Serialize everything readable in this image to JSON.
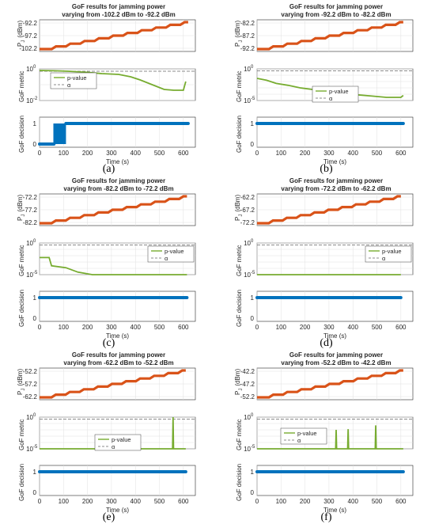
{
  "labels": {
    "pj_axis": "P",
    "pj_sub": "J",
    "pj_unit": "(dBm)",
    "metric_axis": "GoF metric",
    "decision_axis": "GoF decision",
    "time_axis": "Time (s)",
    "legend_pvalue": "p-value",
    "legend_alpha": "α"
  },
  "colors": {
    "power": "#d95319",
    "pvalue": "#77ac30",
    "alpha": "#666666",
    "decision": "#0072bd",
    "axes": "#262626",
    "grid": "#e0e0e0"
  },
  "chart_data": [
    {
      "caption": "(a)",
      "type": "line",
      "title": "GoF results for jamming power",
      "subtitle": "varying from -102.2 dBm to -92.2 dBm",
      "xlim": [
        0,
        650
      ],
      "xticks": [
        0,
        100,
        200,
        300,
        400,
        500,
        600
      ],
      "xlabel": "Time (s)",
      "power": {
        "start": -102.2,
        "end": -92.2,
        "ticks": [
          "-92.2",
          "-97.2",
          "-102.2"
        ],
        "steps": 10,
        "t_end": 620
      },
      "metric": {
        "ylabel": "GoF metric",
        "scale": "log",
        "ymin_exp": -2,
        "ymax_exp": 0,
        "yticks": [
          {
            "exp": 0,
            "label": "10",
            "sup": "0"
          },
          {
            "exp": -2,
            "label": "10",
            "sup": "-2"
          }
        ],
        "alpha_exp": -0.15,
        "pvalue": [
          [
            0,
            -0.1
          ],
          [
            60,
            -0.12
          ],
          [
            120,
            -0.15
          ],
          [
            200,
            -0.22
          ],
          [
            260,
            -0.3
          ],
          [
            330,
            -0.35
          ],
          [
            380,
            -0.5
          ],
          [
            420,
            -0.7
          ],
          [
            470,
            -1.0
          ],
          [
            520,
            -1.3
          ],
          [
            560,
            -1.35
          ],
          [
            600,
            -1.35
          ],
          [
            610,
            -0.8
          ]
        ],
        "legend": "left-top"
      },
      "decision": {
        "ylabel": "GoF decision",
        "yticks": [
          0,
          1
        ],
        "segments": [
          [
            0,
            60,
            0
          ],
          [
            60,
            110,
            "switch"
          ],
          [
            110,
            620,
            1
          ]
        ]
      }
    },
    {
      "caption": "(b)",
      "type": "line",
      "title": "GoF results for jamming power",
      "subtitle": "varying from -92.2 dBm to -82.2 dBm",
      "xlim": [
        0,
        650
      ],
      "xticks": [
        0,
        100,
        200,
        300,
        400,
        500,
        600
      ],
      "xlabel": "Time (s)",
      "power": {
        "start": -92.2,
        "end": -82.2,
        "ticks": [
          "-82.2",
          "-87.2",
          "-92.2"
        ],
        "steps": 10,
        "t_end": 610
      },
      "metric": {
        "ylabel": "GoF metric",
        "scale": "log",
        "ymin_exp": -5,
        "ymax_exp": 0,
        "yticks": [
          {
            "exp": 0,
            "label": "10",
            "sup": "0"
          },
          {
            "exp": -5,
            "label": "10",
            "sup": "-5"
          }
        ],
        "alpha_exp": -0.3,
        "pvalue": [
          [
            0,
            -1.5
          ],
          [
            40,
            -1.8
          ],
          [
            80,
            -2.3
          ],
          [
            130,
            -2.6
          ],
          [
            180,
            -3.0
          ],
          [
            240,
            -3.3
          ],
          [
            300,
            -3.6
          ],
          [
            360,
            -3.9
          ],
          [
            420,
            -4.1
          ],
          [
            480,
            -4.3
          ],
          [
            540,
            -4.5
          ],
          [
            600,
            -4.5
          ],
          [
            610,
            -4.2
          ]
        ],
        "legend": "center"
      },
      "decision": {
        "ylabel": "GoF decision",
        "yticks": [
          0,
          1
        ],
        "segments": [
          [
            0,
            610,
            1
          ]
        ]
      }
    },
    {
      "caption": "(c)",
      "type": "line",
      "title": "GoF results for jamming power",
      "subtitle": "varying from -82.2 dBm to -72.2 dBm",
      "xlim": [
        0,
        650
      ],
      "xticks": [
        0,
        100,
        200,
        300,
        400,
        500,
        600
      ],
      "xlabel": "Time (s)",
      "power": {
        "start": -82.2,
        "end": -72.2,
        "ticks": [
          "-72.2",
          "-77.2",
          "-82.2"
        ],
        "steps": 10,
        "t_end": 615
      },
      "metric": {
        "ylabel": "GoF metric",
        "scale": "log",
        "ymin_exp": -5,
        "ymax_exp": 0,
        "yticks": [
          {
            "exp": 0,
            "label": "10",
            "sup": "0"
          },
          {
            "exp": -5,
            "label": "10",
            "sup": "-5"
          }
        ],
        "alpha_exp": -0.3,
        "pvalue": [
          [
            0,
            -2.3
          ],
          [
            40,
            -2.3
          ],
          [
            50,
            -3.6
          ],
          [
            110,
            -3.9
          ],
          [
            160,
            -4.6
          ],
          [
            220,
            -5
          ],
          [
            615,
            -5
          ]
        ],
        "legend": "right-top"
      },
      "decision": {
        "ylabel": "GoF decision",
        "yticks": [
          0,
          1
        ],
        "segments": [
          [
            0,
            615,
            1
          ]
        ]
      }
    },
    {
      "caption": "(d)",
      "type": "line",
      "title": "GoF results for jamming power",
      "subtitle": "varying from -72.2 dBm to -62.2 dBm",
      "xlim": [
        0,
        650
      ],
      "xticks": [
        0,
        100,
        200,
        300,
        400,
        500,
        600
      ],
      "xlabel": "Time (s)",
      "power": {
        "start": -72.2,
        "end": -62.2,
        "ticks": [
          "-62.2",
          "-67.2",
          "-72.2"
        ],
        "steps": 10,
        "t_end": 600
      },
      "metric": {
        "ylabel": "GoF metric",
        "scale": "log",
        "ymin_exp": -5,
        "ymax_exp": 0,
        "yticks": [
          {
            "exp": 0,
            "label": "10",
            "sup": "0"
          },
          {
            "exp": -5,
            "label": "10",
            "sup": "-5"
          }
        ],
        "alpha_exp": -0.3,
        "pvalue": [
          [
            0,
            -5
          ],
          [
            600,
            -5
          ]
        ],
        "legend": "right-top"
      },
      "decision": {
        "ylabel": "GoF decision",
        "yticks": [
          0,
          1
        ],
        "segments": [
          [
            0,
            600,
            1
          ]
        ]
      }
    },
    {
      "caption": "(e)",
      "type": "line",
      "title": "GoF results for jamming power",
      "subtitle": "varying from -62.2 dBm to -52.2 dBm",
      "xlim": [
        0,
        650
      ],
      "xticks": [
        0,
        100,
        200,
        300,
        400,
        500,
        600
      ],
      "xlabel": "Time (s)",
      "power": {
        "start": -62.2,
        "end": -52.2,
        "ticks": [
          "-52.2",
          "-57.2",
          "-62.2"
        ],
        "steps": 10,
        "t_end": 610
      },
      "metric": {
        "ylabel": "GoF metric",
        "scale": "log",
        "ymin_exp": -5,
        "ymax_exp": 0,
        "yticks": [
          {
            "exp": 0,
            "label": "10",
            "sup": "0"
          },
          {
            "exp": -5,
            "label": "10",
            "sup": "-5"
          }
        ],
        "alpha_exp": -0.3,
        "pvalue": [
          [
            0,
            -5
          ],
          [
            555,
            -5
          ],
          [
            557,
            0
          ],
          [
            559,
            -5
          ],
          [
            610,
            -5
          ]
        ],
        "legend": "center"
      },
      "decision": {
        "ylabel": "GoF decision",
        "yticks": [
          0,
          1
        ],
        "segments": [
          [
            0,
            610,
            1
          ]
        ]
      }
    },
    {
      "caption": "(f)",
      "type": "line",
      "title": "GoF results for jamming power",
      "subtitle": "varying from -52.2 dBm to -42.2 dBm",
      "xlim": [
        0,
        650
      ],
      "xticks": [
        0,
        100,
        200,
        300,
        400,
        500,
        600
      ],
      "xlabel": "Time (s)",
      "power": {
        "start": -52.2,
        "end": -42.2,
        "ticks": [
          "-42.2",
          "-47.2",
          "-52.2"
        ],
        "steps": 10,
        "t_end": 610
      },
      "metric": {
        "ylabel": "GoF metric",
        "scale": "log",
        "ymin_exp": -5,
        "ymax_exp": 0,
        "yticks": [
          {
            "exp": 0,
            "label": "10",
            "sup": "0"
          },
          {
            "exp": -5,
            "label": "10",
            "sup": "-5"
          }
        ],
        "alpha_exp": -0.3,
        "pvalue": [
          [
            0,
            -5
          ],
          [
            328,
            -5
          ],
          [
            330,
            -2
          ],
          [
            332,
            -5
          ],
          [
            378,
            -5
          ],
          [
            380,
            -1.9
          ],
          [
            382,
            -5
          ],
          [
            493,
            -5
          ],
          [
            495,
            -1.3
          ],
          [
            497,
            -5
          ],
          [
            610,
            -5
          ]
        ],
        "legend": "left-center"
      },
      "decision": {
        "ylabel": "GoF decision",
        "yticks": [
          0,
          1
        ],
        "segments": [
          [
            0,
            610,
            1
          ]
        ]
      }
    }
  ]
}
